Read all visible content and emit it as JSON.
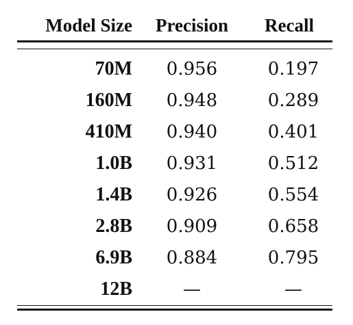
{
  "table": {
    "headers": {
      "model_size": "Model Size",
      "precision": "Precision",
      "recall": "Recall"
    },
    "rows": [
      {
        "model": "70M",
        "precision": "0.956",
        "recall": "0.197"
      },
      {
        "model": "160M",
        "precision": "0.948",
        "recall": "0.289"
      },
      {
        "model": "410M",
        "precision": "0.940",
        "recall": "0.401"
      },
      {
        "model": "1.0B",
        "precision": "0.931",
        "recall": "0.512"
      },
      {
        "model": "1.4B",
        "precision": "0.926",
        "recall": "0.554"
      },
      {
        "model": "2.8B",
        "precision": "0.909",
        "recall": "0.658"
      },
      {
        "model": "6.9B",
        "precision": "0.884",
        "recall": "0.795"
      },
      {
        "model": "12B",
        "precision": "—",
        "recall": "—"
      }
    ]
  }
}
